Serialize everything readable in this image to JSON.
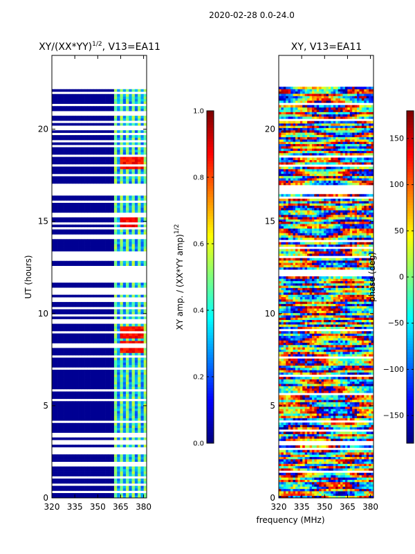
{
  "figure_title": "2020-02-28 0.0-24.0",
  "colors": {
    "jet": [
      "#00007f",
      "#0000ff",
      "#007fff",
      "#00ffff",
      "#7fff7f",
      "#ffff00",
      "#ff7f00",
      "#ff0000",
      "#7f0000"
    ],
    "frame": "#000000",
    "background": "#ffffff"
  },
  "chart_data": [
    {
      "type": "heatmap",
      "title_main": "XY/(XX*YY)",
      "title_sup": "1/2",
      "title_rest": ", V13=EA11",
      "ylabel": "UT (hours)",
      "xlabel": "",
      "xlim": [
        320,
        382
      ],
      "ylim": [
        0,
        24
      ],
      "xticks": [
        320,
        335,
        350,
        365,
        380
      ],
      "yticks": [
        0,
        5,
        10,
        15,
        20
      ],
      "data_range_hours": [
        0,
        22.3
      ],
      "active_band_mhz": [
        360,
        382
      ],
      "gaps_hours": [
        [
          16.4,
          17.0
        ],
        [
          12.9,
          13.4
        ],
        [
          11.8,
          12.6
        ],
        [
          14.0,
          14.3
        ],
        [
          7.6,
          7.7
        ]
      ],
      "hot_spots": [
        {
          "freq": 366,
          "hour": 18.2
        },
        {
          "freq": 370,
          "hour": 18.2
        },
        {
          "freq": 374,
          "hour": 18.2
        },
        {
          "freq": 378,
          "hour": 18.2
        },
        {
          "freq": 366,
          "hour": 15.0
        },
        {
          "freq": 370,
          "hour": 15.0
        },
        {
          "freq": 374,
          "hour": 15.0
        },
        {
          "freq": 366,
          "hour": 9.0
        },
        {
          "freq": 370,
          "hour": 9.0
        },
        {
          "freq": 374,
          "hour": 9.0
        },
        {
          "freq": 378,
          "hour": 9.0
        },
        {
          "freq": 366,
          "hour": 8.2
        },
        {
          "freq": 370,
          "hour": 8.2
        },
        {
          "freq": 374,
          "hour": 8.2
        },
        {
          "freq": 378,
          "hour": 8.2
        }
      ],
      "colorbar": {
        "label_main": "XY amp. / (XX*YY amp)",
        "label_sup": "1/2",
        "range": [
          0.0,
          1.0
        ],
        "ticks": [
          "0.0",
          "0.2",
          "0.4",
          "0.6",
          "0.8",
          "1.0"
        ]
      }
    },
    {
      "type": "heatmap",
      "title": "XY, V13=EA11",
      "ylabel": "",
      "xlabel": "frequency (MHz)",
      "xlim": [
        320,
        382
      ],
      "ylim": [
        0,
        24
      ],
      "xticks": [
        320,
        335,
        350,
        365,
        380
      ],
      "yticks": [
        0,
        5,
        10,
        15,
        20
      ],
      "data_range_hours": [
        0,
        22.3
      ],
      "colorbar": {
        "label": "phase (deg)",
        "range": [
          -180,
          180
        ],
        "ticks": [
          "−150",
          "−100",
          "−50",
          "0",
          "50",
          "100",
          "150"
        ]
      }
    }
  ]
}
